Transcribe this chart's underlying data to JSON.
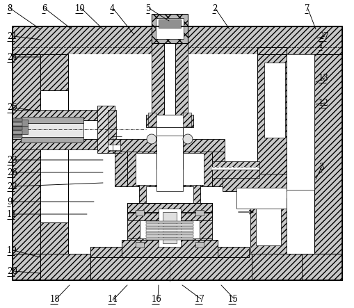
{
  "bg_color": "#ffffff",
  "fig_width": 5.1,
  "fig_height": 4.43,
  "dpi": 100,
  "hc": "#c8c8c8",
  "leaders": {
    "8": [
      10,
      12,
      58,
      42
    ],
    "6": [
      60,
      12,
      103,
      42
    ],
    "10": [
      108,
      12,
      148,
      42
    ],
    "4": [
      158,
      12,
      193,
      50
    ],
    "5": [
      210,
      12,
      243,
      30
    ],
    "2": [
      305,
      12,
      330,
      42
    ],
    "7": [
      438,
      12,
      454,
      42
    ],
    "21": [
      10,
      52,
      58,
      57
    ],
    "27": [
      458,
      52,
      456,
      55
    ],
    "1": [
      458,
      65,
      456,
      68
    ],
    "24": [
      10,
      82,
      58,
      82
    ],
    "13": [
      458,
      112,
      454,
      118
    ],
    "25": [
      10,
      155,
      58,
      160
    ],
    "12": [
      458,
      148,
      454,
      150
    ],
    "23": [
      10,
      230,
      148,
      230
    ],
    "3": [
      458,
      240,
      454,
      258
    ],
    "26": [
      10,
      248,
      148,
      248
    ],
    "22": [
      10,
      268,
      148,
      263
    ],
    "9": [
      10,
      290,
      135,
      290
    ],
    "11": [
      10,
      308,
      125,
      308
    ],
    "19": [
      10,
      360,
      58,
      370
    ],
    "20": [
      10,
      390,
      58,
      393
    ],
    "18": [
      72,
      430,
      100,
      410
    ],
    "14": [
      155,
      430,
      183,
      410
    ],
    "16": [
      218,
      430,
      228,
      410
    ],
    "17": [
      280,
      430,
      262,
      410
    ],
    "15": [
      328,
      430,
      318,
      410
    ]
  },
  "underlined": [
    "21",
    "24",
    "25",
    "23",
    "26",
    "22",
    "9",
    "11",
    "19",
    "20",
    "18",
    "14",
    "16",
    "17",
    "15",
    "27",
    "1",
    "13",
    "12",
    "3",
    "7",
    "8",
    "6",
    "10",
    "4",
    "5",
    "2"
  ]
}
